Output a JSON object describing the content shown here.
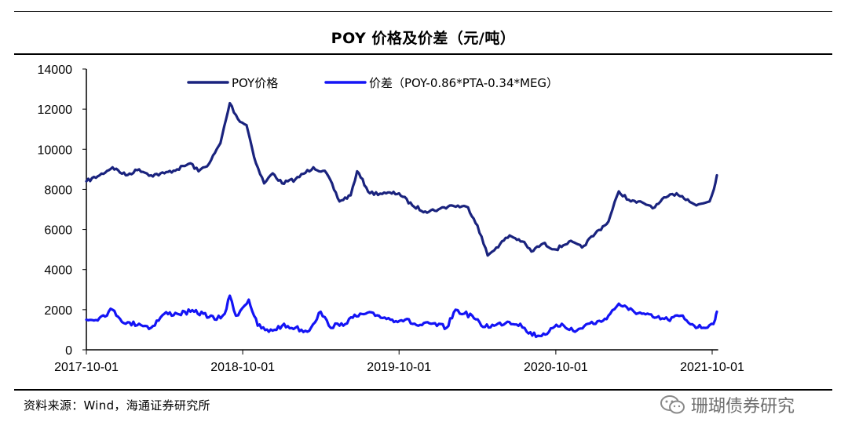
{
  "title": "POY 价格及价差（元/吨）",
  "source": "资料来源：Wind，海通证券研究所",
  "watermark": "珊瑚债券研究",
  "colors": {
    "poy": "#1a237e",
    "spread": "#1414f5",
    "axis": "#000000"
  },
  "chart_data": {
    "type": "line",
    "title": "POY 价格及价差（元/吨）",
    "xlabel": "",
    "ylabel": "",
    "ylim": [
      0,
      14000
    ],
    "yticks": [
      0,
      2000,
      4000,
      6000,
      8000,
      10000,
      12000,
      14000
    ],
    "xticks": [
      "2017-10-01",
      "2018-10-01",
      "2019-10-01",
      "2020-10-01",
      "2021-10-01"
    ],
    "xrange": [
      "2017-10-01",
      "2021-10-15"
    ],
    "grid": false,
    "legend": "top",
    "series": [
      {
        "name": "POY价格",
        "color": "#1a237e",
        "points": [
          [
            "2017-10-01",
            8400
          ],
          [
            "2017-11-01",
            8700
          ],
          [
            "2017-12-01",
            9100
          ],
          [
            "2018-01-01",
            8700
          ],
          [
            "2018-02-01",
            9000
          ],
          [
            "2018-03-01",
            8700
          ],
          [
            "2018-04-01",
            8800
          ],
          [
            "2018-05-01",
            9000
          ],
          [
            "2018-06-01",
            9300
          ],
          [
            "2018-06-20",
            8900
          ],
          [
            "2018-07-15",
            9300
          ],
          [
            "2018-08-10",
            10300
          ],
          [
            "2018-09-01",
            12300
          ],
          [
            "2018-09-20",
            11500
          ],
          [
            "2018-10-10",
            11200
          ],
          [
            "2018-11-01",
            9300
          ],
          [
            "2018-11-20",
            8300
          ],
          [
            "2018-12-10",
            8800
          ],
          [
            "2019-01-01",
            8300
          ],
          [
            "2019-02-01",
            8500
          ],
          [
            "2019-03-15",
            9100
          ],
          [
            "2019-04-15",
            8800
          ],
          [
            "2019-05-15",
            7400
          ],
          [
            "2019-06-10",
            7700
          ],
          [
            "2019-06-25",
            8900
          ],
          [
            "2019-07-25",
            7800
          ],
          [
            "2019-09-01",
            7800
          ],
          [
            "2019-10-01",
            7800
          ],
          [
            "2019-11-01",
            7200
          ],
          [
            "2019-12-01",
            6900
          ],
          [
            "2020-01-01",
            7000
          ],
          [
            "2020-02-01",
            7200
          ],
          [
            "2020-03-10",
            7100
          ],
          [
            "2020-04-01",
            6200
          ],
          [
            "2020-04-25",
            4700
          ],
          [
            "2020-05-15",
            5100
          ],
          [
            "2020-06-15",
            5700
          ],
          [
            "2020-07-15",
            5400
          ],
          [
            "2020-08-05",
            4900
          ],
          [
            "2020-09-01",
            5300
          ],
          [
            "2020-10-01",
            5000
          ],
          [
            "2020-11-01",
            5400
          ],
          [
            "2020-12-01",
            5100
          ],
          [
            "2021-01-01",
            5800
          ],
          [
            "2021-02-01",
            6400
          ],
          [
            "2021-02-25",
            7900
          ],
          [
            "2021-03-25",
            7400
          ],
          [
            "2021-04-25",
            7300
          ],
          [
            "2021-05-20",
            7100
          ],
          [
            "2021-06-15",
            7600
          ],
          [
            "2021-07-10",
            7800
          ],
          [
            "2021-08-05",
            7500
          ],
          [
            "2021-08-25",
            7200
          ],
          [
            "2021-09-10",
            7300
          ],
          [
            "2021-09-25",
            7400
          ],
          [
            "2021-10-05",
            8000
          ],
          [
            "2021-10-12",
            8700
          ]
        ]
      },
      {
        "name": "价差（POY-0.86*PTA-0.34*MEG）",
        "color": "#1414f5",
        "points": [
          [
            "2017-10-01",
            1500
          ],
          [
            "2017-11-01",
            1600
          ],
          [
            "2017-12-01",
            2000
          ],
          [
            "2018-01-01",
            1300
          ],
          [
            "2018-02-01",
            1300
          ],
          [
            "2018-03-01",
            1100
          ],
          [
            "2018-04-01",
            1800
          ],
          [
            "2018-05-01",
            1800
          ],
          [
            "2018-06-01",
            1900
          ],
          [
            "2018-07-01",
            1800
          ],
          [
            "2018-08-01",
            1500
          ],
          [
            "2018-08-20",
            1800
          ],
          [
            "2018-09-01",
            2700
          ],
          [
            "2018-09-15",
            1700
          ],
          [
            "2018-10-01",
            2100
          ],
          [
            "2018-10-15",
            2500
          ],
          [
            "2018-11-05",
            1200
          ],
          [
            "2018-12-01",
            900
          ],
          [
            "2019-01-01",
            1200
          ],
          [
            "2019-02-01",
            1100
          ],
          [
            "2019-03-01",
            900
          ],
          [
            "2019-04-01",
            1900
          ],
          [
            "2019-04-20",
            1200
          ],
          [
            "2019-05-15",
            1200
          ],
          [
            "2019-06-15",
            1600
          ],
          [
            "2019-07-15",
            1800
          ],
          [
            "2019-08-15",
            1700
          ],
          [
            "2019-09-15",
            1500
          ],
          [
            "2019-10-15",
            1500
          ],
          [
            "2019-11-15",
            1200
          ],
          [
            "2019-12-15",
            1300
          ],
          [
            "2020-01-20",
            1100
          ],
          [
            "2020-02-10",
            2000
          ],
          [
            "2020-03-01",
            1800
          ],
          [
            "2020-03-20",
            1700
          ],
          [
            "2020-04-10",
            1200
          ],
          [
            "2020-05-10",
            1200
          ],
          [
            "2020-06-10",
            1400
          ],
          [
            "2020-07-10",
            1300
          ],
          [
            "2020-07-25",
            900
          ],
          [
            "2020-08-20",
            700
          ],
          [
            "2020-09-15",
            900
          ],
          [
            "2020-10-15",
            1300
          ],
          [
            "2020-11-15",
            900
          ],
          [
            "2020-12-15",
            1300
          ],
          [
            "2021-01-15",
            1400
          ],
          [
            "2021-02-05",
            1800
          ],
          [
            "2021-02-25",
            2300
          ],
          [
            "2021-03-20",
            2000
          ],
          [
            "2021-04-20",
            1800
          ],
          [
            "2021-05-20",
            1600
          ],
          [
            "2021-06-20",
            1500
          ],
          [
            "2021-07-20",
            1700
          ],
          [
            "2021-08-20",
            1200
          ],
          [
            "2021-09-10",
            1100
          ],
          [
            "2021-09-30",
            1300
          ],
          [
            "2021-10-08",
            1500
          ],
          [
            "2021-10-12",
            1900
          ]
        ]
      }
    ]
  }
}
